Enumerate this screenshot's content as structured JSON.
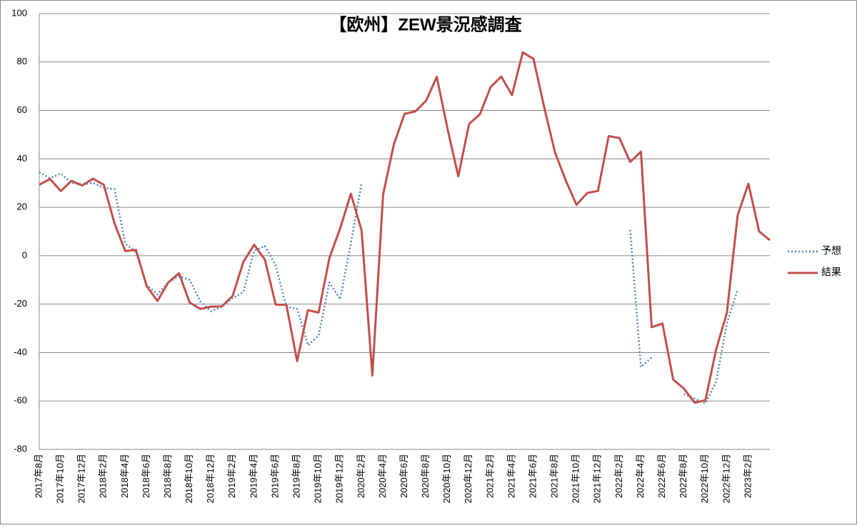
{
  "chart_data": {
    "type": "line",
    "title": "【欧州】ZEW景況感調査",
    "categories": [
      "2017年8月",
      null,
      "2017年10月",
      null,
      "2017年12月",
      null,
      "2018年2月",
      null,
      "2018年4月",
      null,
      "2018年6月",
      null,
      "2018年8月",
      null,
      "2018年10月",
      null,
      "2018年12月",
      null,
      "2019年2月",
      null,
      "2019年4月",
      null,
      "2019年6月",
      null,
      "2019年8月",
      null,
      "2019年10月",
      null,
      "2019年12月",
      null,
      "2020年2月",
      null,
      "2020年4月",
      null,
      "2020年6月",
      null,
      "2020年8月",
      null,
      "2020年10月",
      null,
      "2020年12月",
      null,
      "2021年2月",
      null,
      "2021年4月",
      null,
      "2021年6月",
      null,
      "2021年8月",
      null,
      "2021年10月",
      null,
      "2021年12月",
      null,
      "2022年2月",
      null,
      "2022年4月",
      null,
      "2022年6月",
      null,
      "2022年8月",
      null,
      "2022年10月",
      null,
      "2022年12月",
      null,
      "2023年2月",
      null,
      null
    ],
    "series": [
      {
        "name": "予想",
        "color": "#4f81bd",
        "dash": "dotted",
        "values": [
          34.5,
          32,
          34,
          30,
          29.5,
          30,
          28,
          27.5,
          5,
          1.5,
          -12,
          -16,
          -11,
          -8.5,
          -10,
          -19,
          -23,
          -21,
          -17.5,
          -15,
          2,
          4,
          -4,
          -21,
          -22,
          -37,
          -33,
          -11,
          -18,
          5,
          30,
          null,
          null,
          null,
          null,
          null,
          null,
          null,
          null,
          null,
          null,
          null,
          null,
          null,
          null,
          null,
          null,
          null,
          null,
          null,
          null,
          null,
          null,
          null,
          null,
          10.6,
          -46,
          -42,
          null,
          null,
          -57,
          -59,
          -61,
          -52,
          -28,
          -14,
          null,
          null,
          null
        ]
      },
      {
        "name": "結果",
        "color": "#c0504d",
        "dash": "solid",
        "values": [
          29.3,
          31.7,
          26.7,
          30.9,
          29.0,
          31.8,
          29.3,
          13.4,
          1.9,
          2.4,
          -12.6,
          -18.7,
          -11.1,
          -7.2,
          -19.4,
          -22.0,
          -21.0,
          -20.9,
          -16.6,
          -2.5,
          4.5,
          -1.6,
          -20.2,
          -20.3,
          -43.6,
          -22.5,
          -23.5,
          -1.0,
          11.2,
          25.6,
          10.4,
          -49.5,
          25.2,
          46.0,
          58.6,
          59.6,
          64.0,
          73.9,
          52.3,
          32.8,
          54.4,
          58.3,
          69.6,
          74.0,
          66.3,
          84.0,
          81.3,
          61.2,
          42.7,
          31.1,
          21.0,
          25.9,
          26.8,
          49.4,
          48.6,
          38.7,
          43.0,
          -29.5,
          -28.0,
          -51.1,
          -54.9,
          -60.7,
          -59.7,
          -38.7,
          -23.6,
          16.7,
          29.7,
          10.0,
          6.4
        ]
      }
    ],
    "ylim": [
      -80,
      100
    ],
    "yticks": [
      -80,
      -60,
      -40,
      -20,
      0,
      20,
      40,
      60,
      80,
      100
    ],
    "grid": true,
    "legend": "right"
  }
}
